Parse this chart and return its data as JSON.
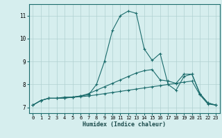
{
  "xlabel": "Humidex (Indice chaleur)",
  "xlim": [
    -0.5,
    23.5
  ],
  "ylim": [
    6.75,
    11.5
  ],
  "yticks": [
    7,
    8,
    9,
    10,
    11
  ],
  "xticks": [
    0,
    1,
    2,
    3,
    4,
    5,
    6,
    7,
    8,
    9,
    10,
    11,
    12,
    13,
    14,
    15,
    16,
    17,
    18,
    19,
    20,
    21,
    22,
    23
  ],
  "background_color": "#d6eeee",
  "grid_color": "#b0d0d0",
  "line_color": "#1a6b6b",
  "line1_x": [
    0,
    1,
    2,
    3,
    4,
    5,
    6,
    7,
    8,
    9,
    10,
    11,
    12,
    13,
    14,
    15,
    16,
    17,
    18,
    19,
    20,
    21,
    22,
    23
  ],
  "line1_y": [
    7.1,
    7.3,
    7.4,
    7.4,
    7.4,
    7.45,
    7.5,
    7.6,
    7.75,
    7.9,
    8.05,
    8.2,
    8.35,
    8.5,
    8.6,
    8.65,
    8.2,
    8.15,
    8.05,
    8.45,
    8.45,
    7.6,
    7.2,
    7.1
  ],
  "line2_x": [
    0,
    1,
    2,
    3,
    4,
    5,
    6,
    7,
    8,
    9,
    10,
    11,
    12,
    13,
    14,
    15,
    16,
    17,
    18,
    19,
    20,
    21,
    22,
    23
  ],
  "line2_y": [
    7.1,
    7.3,
    7.4,
    7.4,
    7.45,
    7.45,
    7.5,
    7.55,
    8.0,
    9.0,
    10.35,
    11.0,
    11.2,
    11.1,
    9.55,
    9.05,
    9.35,
    8.0,
    7.75,
    8.35,
    8.45,
    7.6,
    7.2,
    7.1
  ],
  "line3_x": [
    0,
    1,
    2,
    3,
    4,
    5,
    6,
    7,
    8,
    9,
    10,
    11,
    12,
    13,
    14,
    15,
    16,
    17,
    18,
    19,
    20,
    21,
    22,
    23
  ],
  "line3_y": [
    7.1,
    7.3,
    7.4,
    7.4,
    7.42,
    7.44,
    7.47,
    7.5,
    7.55,
    7.6,
    7.65,
    7.7,
    7.75,
    7.8,
    7.85,
    7.9,
    7.95,
    8.0,
    8.05,
    8.1,
    8.15,
    7.55,
    7.15,
    7.1
  ]
}
